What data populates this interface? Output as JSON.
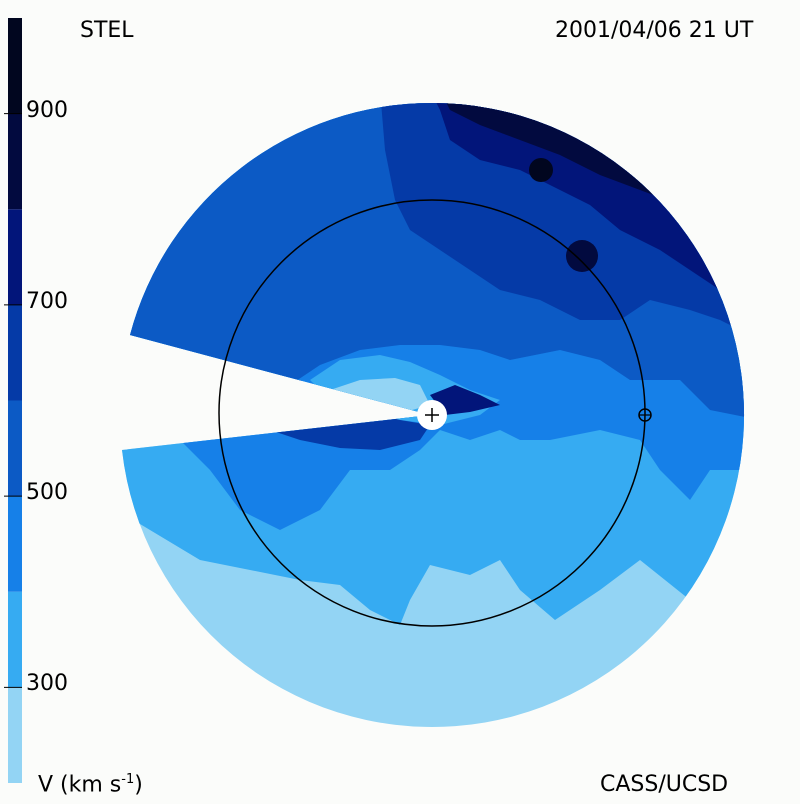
{
  "header": {
    "instrument": "STEL",
    "timestamp": "2001/04/06 21 UT"
  },
  "footer": {
    "units_label": "V (km s",
    "units_exp": "-1",
    "units_close": ")",
    "credit": "CASS/UCSD"
  },
  "colorbar": {
    "levels": [
      {
        "min": 200,
        "max": 300,
        "color": "#93d4f4"
      },
      {
        "min": 300,
        "max": 400,
        "color": "#36abf2"
      },
      {
        "min": 400,
        "max": 500,
        "color": "#1680e8"
      },
      {
        "min": 500,
        "max": 600,
        "color": "#0c5ac5"
      },
      {
        "min": 600,
        "max": 700,
        "color": "#053aa7"
      },
      {
        "min": 700,
        "max": 800,
        "color": "#02157a"
      },
      {
        "min": 800,
        "max": 900,
        "color": "#020a3f"
      },
      {
        "min": 900,
        "max": 1000,
        "color": "#01061f"
      }
    ],
    "ticks": [
      "900",
      "700",
      "500",
      "300"
    ],
    "tick_values": [
      900,
      700,
      500,
      300
    ],
    "range": [
      200,
      1000
    ]
  },
  "map": {
    "description_colors": {
      "background": "#fbfcfa",
      "orbit": "#000000",
      "sun": "#ffffff"
    },
    "markers": [
      "sun-marker",
      "earth-marker"
    ]
  }
}
